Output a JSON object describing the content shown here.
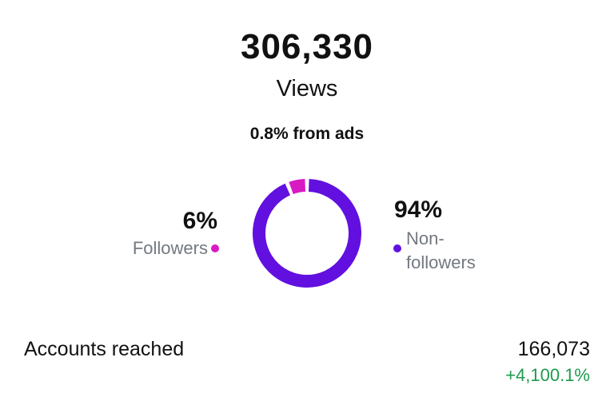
{
  "header": {
    "total": "306,330",
    "label": "Views",
    "ads_note": "0.8% from ads"
  },
  "chart_data": {
    "type": "donut",
    "categories": [
      "Followers",
      "Non-followers"
    ],
    "values": [
      6,
      94
    ],
    "value_labels": [
      "6%",
      "94%"
    ],
    "colors": [
      "#d91ac4",
      "#6210e0"
    ]
  },
  "stats": {
    "label": "Accounts reached",
    "value": "166,073",
    "change": "+4,100.1%"
  }
}
